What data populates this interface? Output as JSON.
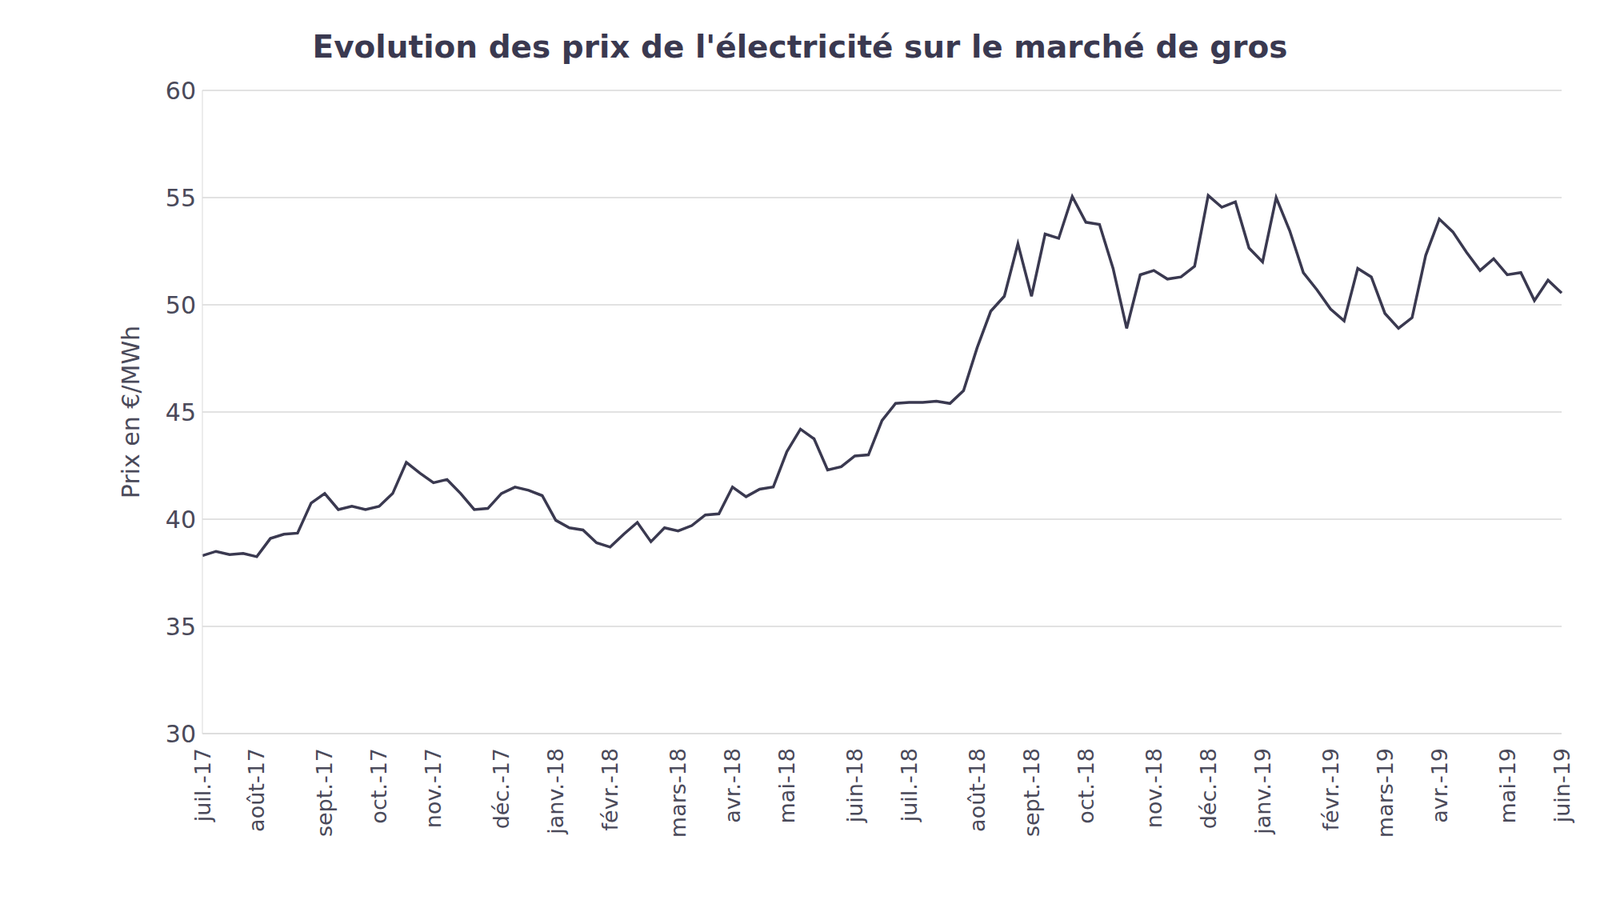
{
  "chart_data": {
    "type": "line",
    "title": "Evolution des prix de l'électricité sur le marché de gros",
    "y_label": "Prix en €/MWh",
    "categories": [
      "juil.-17",
      null,
      null,
      null,
      "août-17",
      null,
      null,
      null,
      null,
      "sept.-17",
      null,
      null,
      null,
      "oct.-17",
      null,
      null,
      null,
      "nov.-17",
      null,
      null,
      null,
      null,
      "déc.-17",
      null,
      null,
      null,
      "janv.-18",
      null,
      null,
      null,
      "févr.-18",
      null,
      null,
      null,
      null,
      "mars-18",
      null,
      null,
      null,
      "avr.-18",
      null,
      null,
      null,
      "mai-18",
      null,
      null,
      null,
      null,
      "juin-18",
      null,
      null,
      null,
      "juil.-18",
      null,
      null,
      null,
      null,
      "août-18",
      null,
      null,
      null,
      "sept.-18",
      null,
      null,
      null,
      "oct.-18",
      null,
      null,
      null,
      null,
      "nov.-18",
      null,
      null,
      null,
      "déc.-18",
      null,
      null,
      null,
      "janv.-19",
      null,
      null,
      null,
      null,
      "févr.-19",
      null,
      null,
      null,
      "mars-19",
      null,
      null,
      null,
      "avr.-19",
      null,
      null,
      null,
      null,
      "mai-19",
      null,
      null,
      null,
      "juin-19"
    ],
    "values": [
      38.3,
      38.5,
      38.35,
      38.4,
      38.25,
      39.1,
      39.3,
      39.35,
      40.75,
      41.2,
      40.45,
      40.6,
      40.45,
      40.6,
      41.2,
      42.65,
      42.15,
      41.7,
      41.85,
      41.2,
      40.45,
      40.5,
      41.2,
      41.5,
      41.35,
      41.1,
      39.95,
      39.6,
      39.5,
      38.9,
      38.7,
      39.3,
      39.85,
      38.95,
      39.6,
      39.45,
      39.7,
      40.2,
      40.25,
      41.5,
      41.05,
      41.4,
      41.5,
      43.15,
      44.2,
      43.75,
      42.3,
      42.45,
      42.95,
      43.0,
      44.6,
      45.4,
      45.45,
      45.45,
      45.5,
      45.4,
      46.0,
      48.0,
      49.7,
      50.4,
      52.85,
      50.4,
      53.3,
      53.1,
      55.05,
      53.85,
      53.75,
      51.7,
      48.9,
      51.4,
      51.6,
      51.2,
      51.3,
      51.8,
      55.1,
      54.55,
      54.8,
      52.65,
      52.0,
      55.0,
      53.45,
      51.5,
      50.7,
      49.8,
      49.25,
      51.7,
      51.3,
      49.6,
      48.9,
      49.4,
      52.3,
      54.0,
      53.4,
      52.45,
      51.6,
      52.15,
      51.4,
      51.5,
      50.2,
      51.15,
      50.55
    ],
    "color": "#3a3950",
    "ylim": [
      30,
      60
    ],
    "yticks": [
      30,
      35,
      40,
      45,
      50,
      55,
      60
    ],
    "grid": true
  }
}
